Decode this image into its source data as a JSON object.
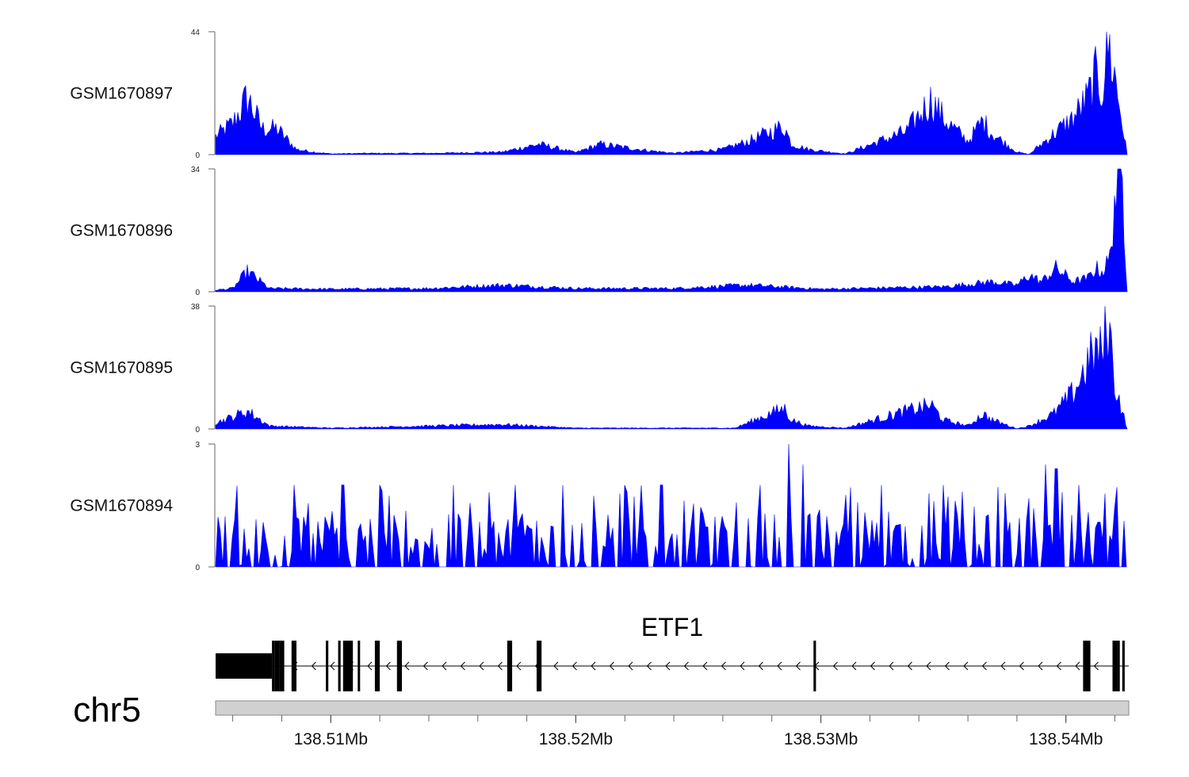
{
  "chart_data": {
    "type": "area",
    "x_range_mb": [
      138.5053,
      138.5425
    ],
    "series": [
      {
        "name": "GSM1670897",
        "ylim": [
          0,
          44
        ],
        "ytick_labels": [
          "0",
          "44"
        ],
        "color": "#0000ff",
        "x": [
          138.5053,
          138.506,
          138.5066,
          138.5072,
          138.5078,
          138.5086,
          138.5093,
          138.51,
          138.5115,
          138.514,
          138.517,
          138.5185,
          138.52,
          138.521,
          138.523,
          138.524,
          138.526,
          138.527,
          138.5285,
          138.5288,
          138.5295,
          138.531,
          138.5335,
          138.5345,
          138.535,
          138.536,
          138.5366,
          138.537,
          138.538,
          138.5385,
          138.5395,
          138.5403,
          138.5409,
          138.5412,
          138.5415,
          138.5417,
          138.542,
          138.5425
        ],
        "values": [
          7,
          12,
          22,
          10,
          10,
          2,
          1,
          0.3,
          0.5,
          0.5,
          1,
          4,
          0.8,
          4,
          1.5,
          0.6,
          2,
          5,
          11,
          4,
          2,
          0.3,
          9,
          21,
          14,
          5,
          13,
          8,
          1,
          0.1,
          8,
          14,
          22,
          30,
          25,
          44,
          30,
          0
        ]
      },
      {
        "name": "GSM1670896",
        "ylim": [
          0,
          34
        ],
        "ytick_labels": [
          "0",
          "34"
        ],
        "color": "#0000ff",
        "x": [
          138.5053,
          138.506,
          138.5066,
          138.5075,
          138.51,
          138.514,
          138.517,
          138.52,
          138.524,
          138.527,
          138.53,
          138.535,
          138.537,
          138.538,
          138.5385,
          138.539,
          138.5396,
          138.5403,
          138.5409,
          138.5412,
          138.5415,
          138.5418,
          138.542,
          138.5423,
          138.5425
        ],
        "values": [
          0.5,
          1,
          6,
          1,
          0.8,
          1,
          2,
          1,
          1,
          2,
          0.8,
          1.5,
          3,
          2,
          5,
          3,
          7,
          3,
          4,
          7,
          6,
          10,
          30,
          34,
          0
        ]
      },
      {
        "name": "GSM1670895",
        "ylim": [
          0,
          38
        ],
        "ytick_labels": [
          "0",
          "38"
        ],
        "color": "#0000ff",
        "x": [
          138.5053,
          138.506,
          138.5066,
          138.5075,
          138.51,
          138.517,
          138.52,
          138.5265,
          138.5285,
          138.5288,
          138.5295,
          138.531,
          138.5335,
          138.5345,
          138.535,
          138.536,
          138.5366,
          138.537,
          138.538,
          138.5385,
          138.5395,
          138.5403,
          138.5409,
          138.5412,
          138.5415,
          138.5417,
          138.542,
          138.5425
        ],
        "values": [
          2,
          4,
          6,
          1,
          0.3,
          1.5,
          0.3,
          0.3,
          7,
          3,
          1,
          0.3,
          6,
          8,
          3,
          1,
          5,
          3,
          0.1,
          1,
          5,
          12,
          22,
          26,
          25,
          38,
          15,
          0
        ]
      },
      {
        "name": "GSM1670894",
        "ylim": [
          0,
          3
        ],
        "ytick_labels": [
          "0",
          "3"
        ],
        "color": "#0000ff",
        "noise": true,
        "spikes_x": [
          138.5085,
          138.5105,
          138.512,
          138.515,
          138.5175,
          138.5195,
          138.522,
          138.5235,
          138.5275,
          138.5287,
          138.5293,
          138.5325,
          138.535,
          138.5375,
          138.5392,
          138.5396,
          138.5405
        ],
        "spikes_values": [
          2,
          2,
          2,
          2,
          2,
          2,
          2,
          2,
          2,
          3,
          2.5,
          2,
          2,
          1.8,
          2.5,
          2.4,
          2
        ]
      }
    ],
    "gene_track": {
      "gene_name": "ETF1",
      "strand": "-",
      "exons_mb": [
        [
          138.5053,
          138.5076
        ],
        [
          138.5076,
          138.5077
        ],
        [
          138.5077,
          138.5079
        ],
        [
          138.5079,
          138.5081
        ],
        [
          138.5084,
          138.5086
        ],
        [
          138.5098,
          138.5099
        ],
        [
          138.5103,
          138.5104
        ],
        [
          138.5105,
          138.5109
        ],
        [
          138.5111,
          138.5111
        ],
        [
          138.5118,
          138.512
        ],
        [
          138.5127,
          138.5129
        ],
        [
          138.5172,
          138.5174
        ],
        [
          138.5184,
          138.5186
        ],
        [
          138.5297,
          138.5298
        ],
        [
          138.5407,
          138.5408
        ],
        [
          138.5408,
          138.541
        ],
        [
          138.5419,
          138.5421
        ],
        [
          138.5421,
          138.5422
        ],
        [
          138.5423,
          138.5424
        ]
      ]
    },
    "chromosome": "chr5",
    "x_tick_labels": [
      "138.51Mb",
      "138.52Mb",
      "138.53Mb",
      "138.54Mb"
    ],
    "x_tick_values": [
      138.51,
      138.52,
      138.53,
      138.54
    ]
  }
}
